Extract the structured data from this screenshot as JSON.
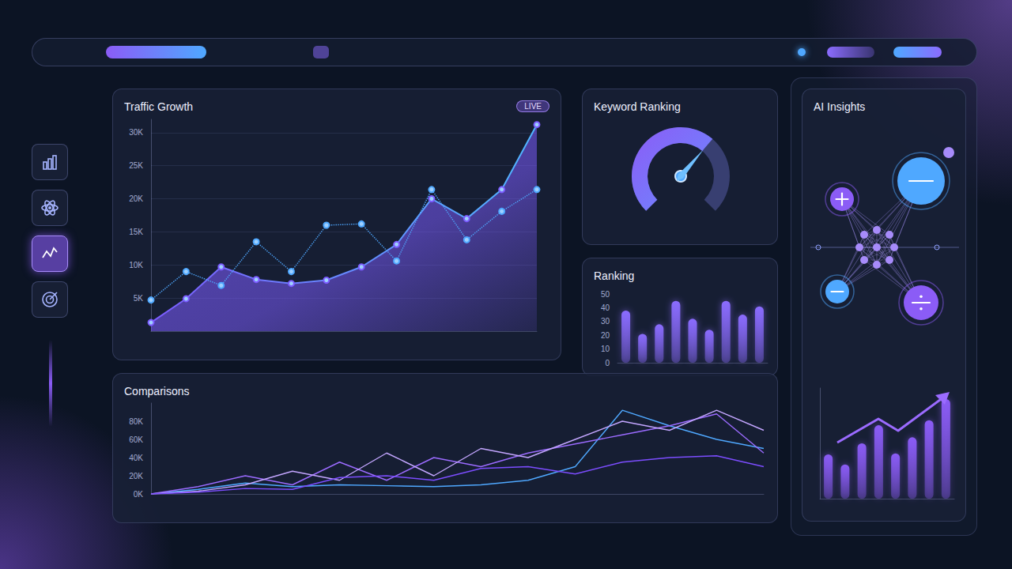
{
  "chart_data": [
    {
      "type": "line",
      "title": "Traffic Growth",
      "annotations": [
        "LIVE"
      ],
      "categories": [
        null,
        null,
        null,
        null,
        null,
        null,
        null,
        null,
        null,
        null,
        null,
        null
      ],
      "series": [
        {
          "type": "area",
          "color": "#7c5cff",
          "marker": "circle",
          "values": [
            1300,
            4900,
            9700,
            7800,
            7200,
            7700,
            9700,
            13100,
            20000,
            17000,
            21400,
            31200
          ]
        },
        {
          "type": "line",
          "color": "#4fa8ff",
          "line_style": "dotted",
          "marker": "circle",
          "values": [
            4700,
            9000,
            6900,
            13500,
            9000,
            16000,
            16200,
            10600,
            21400,
            13800,
            18100,
            21400
          ]
        }
      ],
      "ylim": [
        0,
        32000
      ],
      "yticks": [
        {
          "value": 5000,
          "label": "5K"
        },
        {
          "value": 10000,
          "label": "10K"
        },
        {
          "value": 15000,
          "label": "15K"
        },
        {
          "value": 20000,
          "label": "20K"
        },
        {
          "value": 25000,
          "label": "25K"
        },
        {
          "value": 30000,
          "label": "30K"
        }
      ],
      "grid": true,
      "tick_labels": "y"
    },
    {
      "type": "gauge",
      "title": "Keyword Ranking",
      "values": [
        65
      ],
      "ylim": [
        0,
        100
      ],
      "color": "#8b5cf6",
      "tick_labels": false
    },
    {
      "type": "bar",
      "title": "Ranking",
      "categories": [
        null,
        null,
        null,
        null,
        null,
        null,
        null,
        null,
        null
      ],
      "values": [
        38,
        21,
        28,
        45,
        32,
        24,
        45,
        35,
        41
      ],
      "color": "#8b6cff",
      "ylim": [
        0,
        50
      ],
      "yticks": [
        0,
        10,
        20,
        30,
        40,
        50
      ],
      "grid": false,
      "tick_labels": "y"
    },
    {
      "type": "line",
      "title": "Comparisons",
      "categories": [
        null,
        null,
        null,
        null,
        null,
        null,
        null,
        null,
        null,
        null,
        null,
        null,
        null,
        null
      ],
      "series": [
        {
          "color": "#4fa8ff",
          "values": [
            0,
            5000,
            12000,
            8000,
            10000,
            9000,
            8000,
            10000,
            15000,
            30000,
            92000,
            75000,
            60000,
            50000
          ]
        },
        {
          "color": "#9b6bff",
          "values": [
            0,
            8000,
            20000,
            10000,
            35000,
            15000,
            40000,
            30000,
            45000,
            55000,
            65000,
            75000,
            88000,
            45000
          ]
        },
        {
          "color": "#c3a6ff",
          "values": [
            0,
            3000,
            10000,
            25000,
            15000,
            45000,
            20000,
            50000,
            40000,
            60000,
            80000,
            70000,
            92000,
            70000
          ]
        },
        {
          "color": "#7c4dff",
          "values": [
            0,
            2000,
            6000,
            5000,
            18000,
            20000,
            15000,
            28000,
            30000,
            22000,
            35000,
            40000,
            42000,
            30000
          ]
        }
      ],
      "ylim": [
        0,
        100000
      ],
      "yticks": [
        {
          "value": 0,
          "label": "0K"
        },
        {
          "value": 20000,
          "label": "20K"
        },
        {
          "value": 40000,
          "label": "40K"
        },
        {
          "value": 60000,
          "label": "60K"
        },
        {
          "value": 80000,
          "label": "80K"
        }
      ],
      "grid": false,
      "tick_labels": "y"
    },
    {
      "type": "bar",
      "title": "AI Insights",
      "categories": [
        null,
        null,
        null,
        null,
        null,
        null,
        null,
        null
      ],
      "values": [
        44,
        34,
        55,
        73,
        45,
        61,
        78,
        99
      ],
      "color": "#8b5cf6",
      "ylim": [
        0,
        110
      ],
      "tick_labels": false
    }
  ]
}
